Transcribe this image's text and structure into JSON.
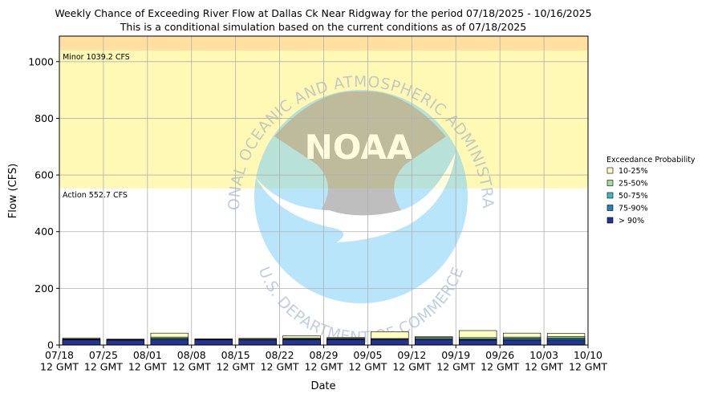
{
  "chart_data": {
    "type": "bar",
    "title": "Weekly Chance of Exceeding River Flow at Dallas Ck Near Ridgway for the period 07/18/2025 - 10/16/2025",
    "subtitle": "This is a conditional simulation based on the current conditions as of 07/18/2025",
    "xlabel": "Date",
    "ylabel": "Flow (CFS)",
    "ylim": [
      0,
      1090
    ],
    "yticks": [
      0,
      200,
      400,
      600,
      800,
      1000
    ],
    "xticks": [
      "07/18\n12 GMT",
      "07/25\n12 GMT",
      "08/01\n12 GMT",
      "08/08\n12 GMT",
      "08/15\n12 GMT",
      "08/22\n12 GMT",
      "08/29\n12 GMT",
      "09/05\n12 GMT",
      "09/12\n12 GMT",
      "09/19\n12 GMT",
      "09/26\n12 GMT",
      "10/03\n12 GMT",
      "10/10\n12 GMT"
    ],
    "grid": true,
    "legend": {
      "title": "Exceedance Probability",
      "placement": "right",
      "entries": [
        {
          "label": "10-25%",
          "color": "#ffffc0"
        },
        {
          "label": "25-50%",
          "color": "#a6dba0"
        },
        {
          "label": "50-75%",
          "color": "#41b6c4"
        },
        {
          "label": "75-90%",
          "color": "#2c7fb8"
        },
        {
          "label": "> 90%",
          "color": "#253494"
        }
      ]
    },
    "thresholds": [
      {
        "label": "Minor 1039.2 CFS",
        "value": 1039.2,
        "color": "#ffe0a0"
      },
      {
        "label": "Action 552.7 CFS",
        "value": 552.7,
        "color": "#fff9b5"
      }
    ],
    "categories": [
      "07/18",
      "07/25",
      "08/01",
      "08/08",
      "08/15",
      "08/22",
      "08/29",
      "09/05",
      "09/12",
      "09/19",
      "09/26",
      "10/03",
      "10/10"
    ],
    "series": [
      {
        "name": "> 90%",
        "values": [
          18,
          17,
          18,
          18,
          18,
          18,
          19,
          19,
          18,
          17,
          17,
          17,
          17
        ]
      },
      {
        "name": "75-90%",
        "values": [
          19,
          18,
          21,
          19,
          19,
          20,
          20,
          20,
          20,
          19,
          20,
          21,
          22
        ]
      },
      {
        "name": "50-75%",
        "values": [
          20,
          19,
          24,
          20,
          20,
          22,
          22,
          21,
          23,
          22,
          24,
          25,
          29
        ]
      },
      {
        "name": "25-50%",
        "values": [
          22,
          20,
          28,
          21,
          21,
          25,
          24,
          23,
          27,
          26,
          28,
          30,
          36
        ]
      },
      {
        "name": "10-25%",
        "values": [
          25,
          21,
          42,
          22,
          24,
          33,
          27,
          47,
          30,
          51,
          42,
          41,
          48
        ]
      }
    ]
  },
  "logo": {
    "text": "NOAA",
    "ring_top": "NATIONAL OCEANIC AND ATMOSPHERIC ADMINISTRATION",
    "ring_bottom": "U.S. DEPARTMENT OF COMMERCE"
  }
}
